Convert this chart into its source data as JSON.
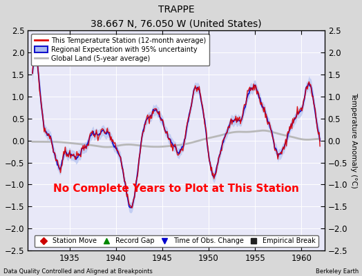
{
  "title": "TRAPPE",
  "subtitle": "38.667 N, 76.050 W (United States)",
  "ylabel_right": "Temperature Anomaly (°C)",
  "xlim": [
    1930.5,
    1962.5
  ],
  "ylim": [
    -2.5,
    2.5
  ],
  "yticks": [
    -2.5,
    -2,
    -1.5,
    -1,
    -0.5,
    0,
    0.5,
    1,
    1.5,
    2,
    2.5
  ],
  "xticks": [
    1935,
    1940,
    1945,
    1950,
    1955,
    1960
  ],
  "footer_left": "Data Quality Controlled and Aligned at Breakpoints",
  "footer_right": "Berkeley Earth",
  "annotation": "No Complete Years to Plot at This Station",
  "annotation_color": "#ff0000",
  "bg_color": "#d8d8d8",
  "plot_bg_color": "#e8e8f8",
  "legend_entries": [
    {
      "label": "This Temperature Station (12-month average)",
      "color": "#ff0000",
      "lw": 2
    },
    {
      "label": "Regional Expectation with 95% uncertainty",
      "color": "#2222cc",
      "lw": 2
    },
    {
      "label": "Global Land (5-year average)",
      "color": "#aaaaaa",
      "lw": 2
    }
  ],
  "marker_legend": [
    {
      "label": "Station Move",
      "color": "#cc0000",
      "marker": "D"
    },
    {
      "label": "Record Gap",
      "color": "#008800",
      "marker": "^"
    },
    {
      "label": "Time of Obs. Change",
      "color": "#0000cc",
      "marker": "v"
    },
    {
      "label": "Empirical Break",
      "color": "#222222",
      "marker": "s"
    }
  ]
}
